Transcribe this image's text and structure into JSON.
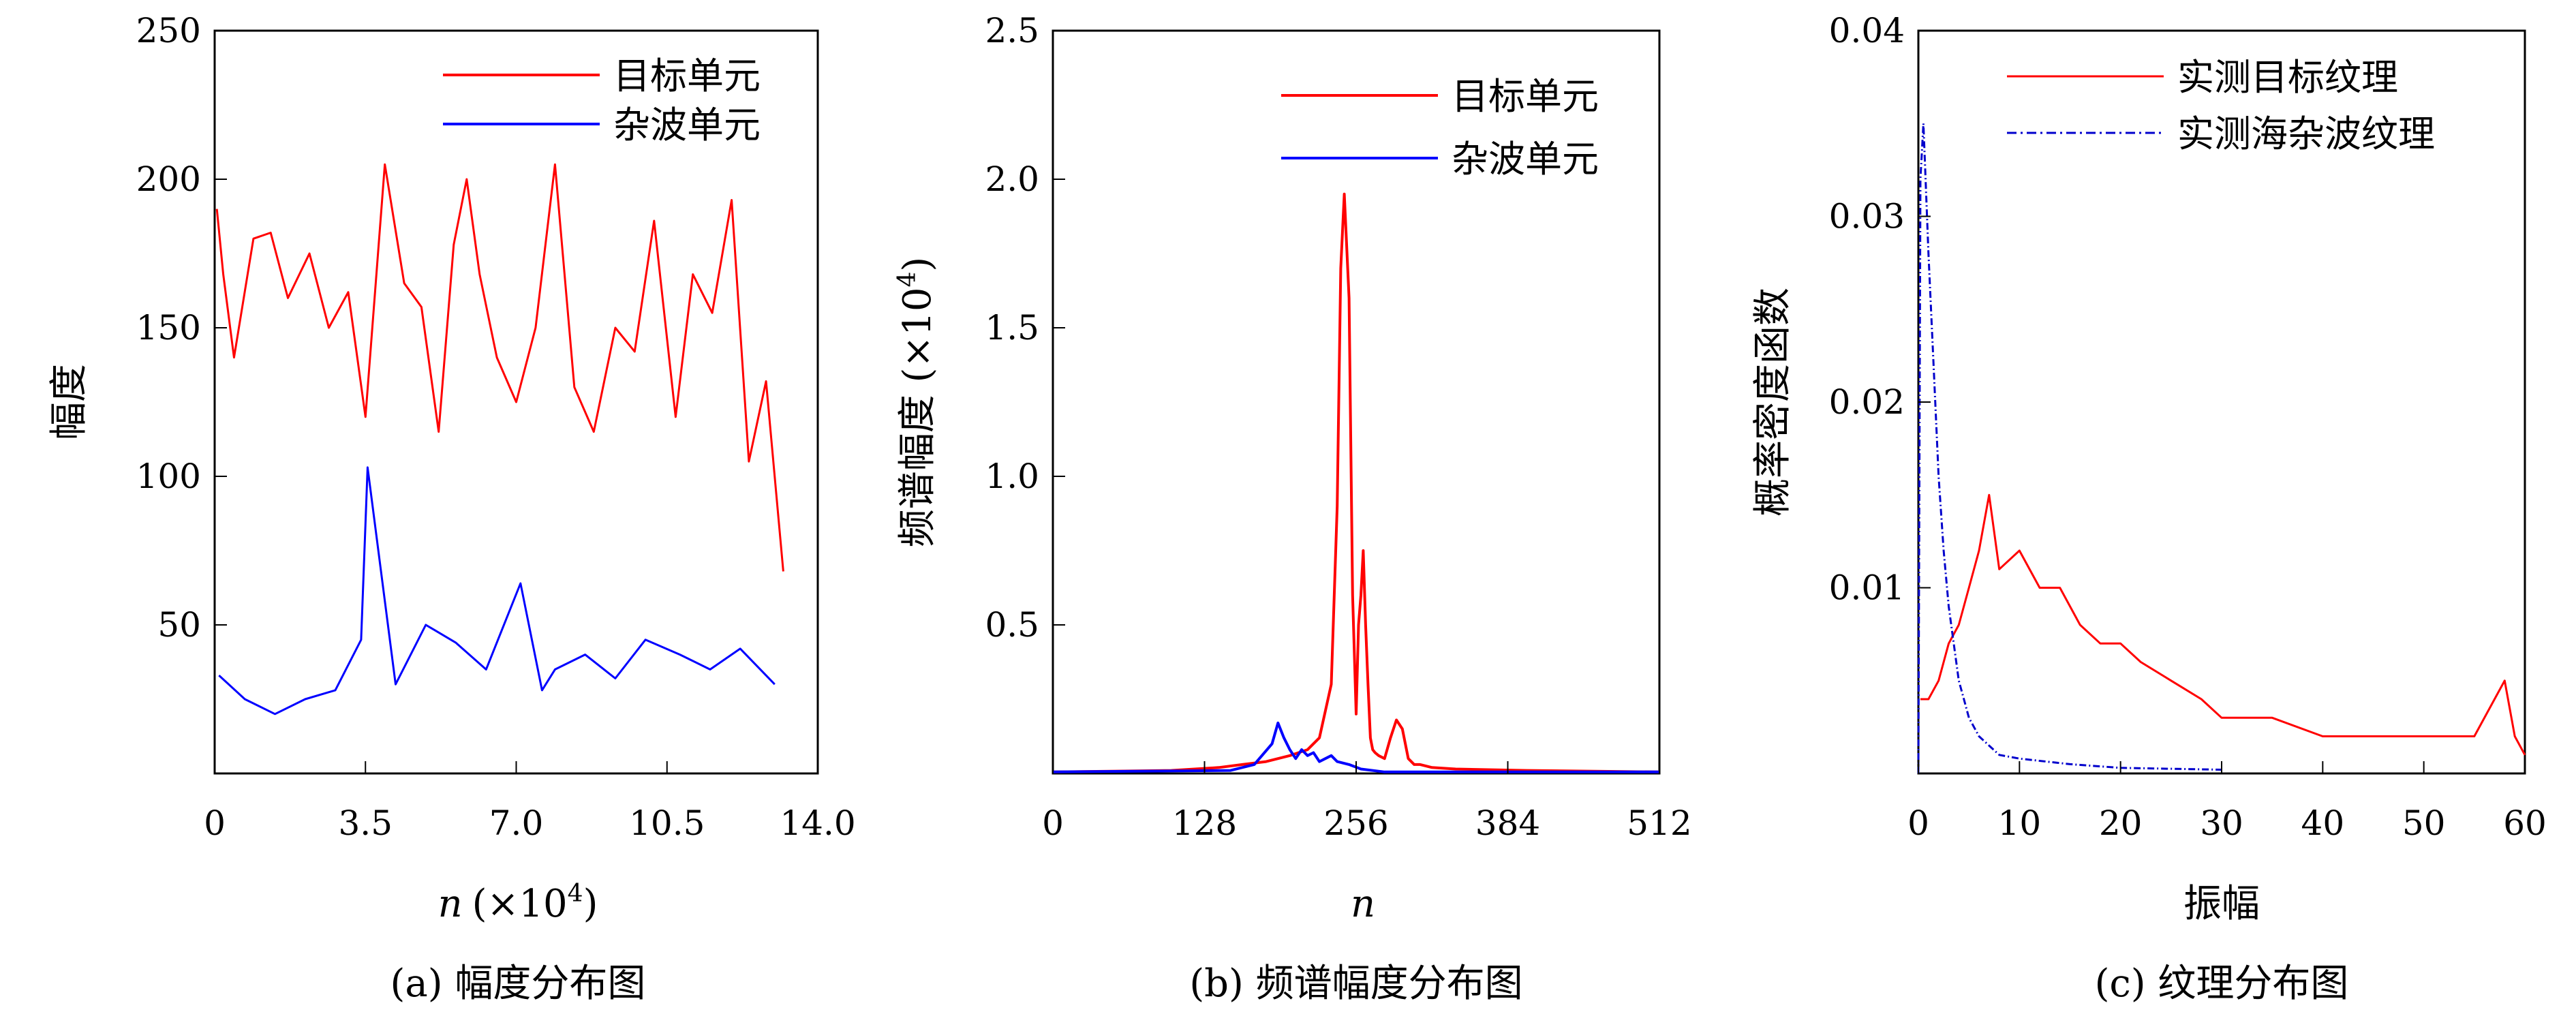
{
  "chart_data": [
    {
      "type": "line",
      "caption": "(a) 幅度分布图",
      "xlabel_symbol": "n",
      "xlabel_unit": "(×10",
      "xlabel_exp": "4",
      "xlabel_close": ")",
      "ylabel": "幅度",
      "xlim": [
        0,
        14.0
      ],
      "ylim": [
        0,
        250
      ],
      "xticks": [
        "0",
        "3.5",
        "7.0",
        "10.5",
        "14.0"
      ],
      "xtick_values": [
        0,
        3.5,
        7.0,
        10.5,
        14.0
      ],
      "yticks": [
        "50",
        "100",
        "150",
        "200",
        "250"
      ],
      "ytick_values": [
        50,
        100,
        150,
        200,
        250
      ],
      "legend_position": "top-right",
      "series": [
        {
          "name": "目标单元",
          "color": "#ff0000",
          "x": [
            0.05,
            0.2,
            0.45,
            0.9,
            1.3,
            1.7,
            2.2,
            2.65,
            3.1,
            3.5,
            3.95,
            4.4,
            4.8,
            5.2,
            5.55,
            5.85,
            6.15,
            6.55,
            7.0,
            7.45,
            7.9,
            8.35,
            8.8,
            9.3,
            9.75,
            10.2,
            10.7,
            11.1,
            11.55,
            12.0,
            12.4,
            12.8,
            13.2
          ],
          "values": [
            190,
            168,
            140,
            180,
            182,
            160,
            175,
            150,
            162,
            120,
            205,
            165,
            157,
            115,
            178,
            200,
            168,
            140,
            125,
            150,
            205,
            130,
            115,
            150,
            142,
            186,
            120,
            168,
            155,
            193,
            105,
            132,
            68
          ]
        },
        {
          "name": "杂波单元",
          "color": "#0000ff",
          "x": [
            0.1,
            0.7,
            1.4,
            2.1,
            2.8,
            3.4,
            3.55,
            4.2,
            4.9,
            5.6,
            6.3,
            7.1,
            7.6,
            7.9,
            8.6,
            9.3,
            10.0,
            10.8,
            11.5,
            12.2,
            13.0
          ],
          "values": [
            33,
            25,
            20,
            25,
            28,
            45,
            103,
            30,
            50,
            44,
            35,
            64,
            28,
            35,
            40,
            32,
            45,
            40,
            35,
            42,
            30
          ]
        }
      ]
    },
    {
      "type": "line",
      "caption": "(b) 频谱幅度分布图",
      "xlabel": "n",
      "ylabel": "频谱幅度 (×10",
      "ylabel_exp": "4",
      "ylabel_close": ")",
      "xlim": [
        0,
        512
      ],
      "ylim": [
        0,
        2.5
      ],
      "xticks": [
        "0",
        "128",
        "256",
        "384",
        "512"
      ],
      "xtick_values": [
        0,
        128,
        256,
        384,
        512
      ],
      "yticks": [
        "0.5",
        "1.0",
        "1.5",
        "2.0",
        "2.5"
      ],
      "ytick_values": [
        0.5,
        1.0,
        1.5,
        2.0,
        2.5
      ],
      "legend_position": "top-right",
      "series": [
        {
          "name": "目标单元",
          "color": "#ff0000",
          "x": [
            0,
            100,
            140,
            160,
            180,
            200,
            215,
            225,
            235,
            240,
            243,
            246,
            250,
            253,
            256,
            258,
            260,
            262,
            264,
            266,
            268,
            270,
            272,
            275,
            280,
            285,
            290,
            295,
            300,
            305,
            310,
            320,
            340,
            400,
            512
          ],
          "values": [
            0.005,
            0.01,
            0.02,
            0.03,
            0.04,
            0.06,
            0.08,
            0.12,
            0.3,
            0.9,
            1.7,
            1.95,
            1.6,
            0.6,
            0.2,
            0.5,
            0.6,
            0.75,
            0.5,
            0.3,
            0.12,
            0.08,
            0.07,
            0.06,
            0.05,
            0.12,
            0.18,
            0.15,
            0.05,
            0.03,
            0.03,
            0.02,
            0.015,
            0.01,
            0.005
          ]
        },
        {
          "name": "杂波单元",
          "color": "#0000ff",
          "x": [
            0,
            150,
            170,
            185,
            190,
            195,
            200,
            205,
            210,
            215,
            220,
            225,
            230,
            235,
            240,
            250,
            260,
            280,
            512
          ],
          "values": [
            0.005,
            0.01,
            0.03,
            0.1,
            0.17,
            0.12,
            0.08,
            0.05,
            0.08,
            0.06,
            0.07,
            0.04,
            0.05,
            0.06,
            0.04,
            0.03,
            0.015,
            0.005,
            0.005
          ]
        }
      ]
    },
    {
      "type": "line",
      "caption": "(c) 纹理分布图",
      "xlabel": "振幅",
      "ylabel": "概率密度函数",
      "xlim": [
        0,
        60
      ],
      "ylim": [
        0,
        0.04
      ],
      "xticks": [
        "0",
        "10",
        "20",
        "30",
        "40",
        "50",
        "60"
      ],
      "xtick_values": [
        0,
        10,
        20,
        30,
        40,
        50,
        60
      ],
      "yticks": [
        "0.01",
        "0.02",
        "0.03",
        "0.04"
      ],
      "ytick_values": [
        0.01,
        0.02,
        0.03,
        0.04
      ],
      "legend_position": "top-right",
      "series": [
        {
          "name": "实测目标纹理",
          "color": "#ff0000",
          "x": [
            0.2,
            0.5,
            1,
            2,
            3,
            4,
            5,
            6,
            7,
            8,
            10,
            12,
            14,
            16,
            18,
            20,
            22,
            25,
            28,
            30,
            35,
            40,
            45,
            50,
            55,
            58,
            59,
            60
          ],
          "values": [
            0.004,
            0.004,
            0.004,
            0.005,
            0.007,
            0.008,
            0.01,
            0.012,
            0.015,
            0.011,
            0.012,
            0.01,
            0.01,
            0.008,
            0.007,
            0.007,
            0.006,
            0.005,
            0.004,
            0.003,
            0.003,
            0.002,
            0.002,
            0.002,
            0.002,
            0.005,
            0.002,
            0.001
          ]
        },
        {
          "name": "实测海杂波纹理",
          "color": "#0000cc",
          "x": [
            0,
            0.2,
            0.5,
            1,
            1.5,
            2,
            2.5,
            3,
            3.5,
            4,
            4.5,
            5,
            6,
            7,
            8,
            10,
            15,
            20,
            30
          ],
          "values": [
            0.0,
            0.032,
            0.035,
            0.028,
            0.022,
            0.016,
            0.012,
            0.009,
            0.007,
            0.005,
            0.004,
            0.003,
            0.002,
            0.0015,
            0.001,
            0.0008,
            0.0005,
            0.0003,
            0.0002
          ]
        }
      ]
    }
  ]
}
